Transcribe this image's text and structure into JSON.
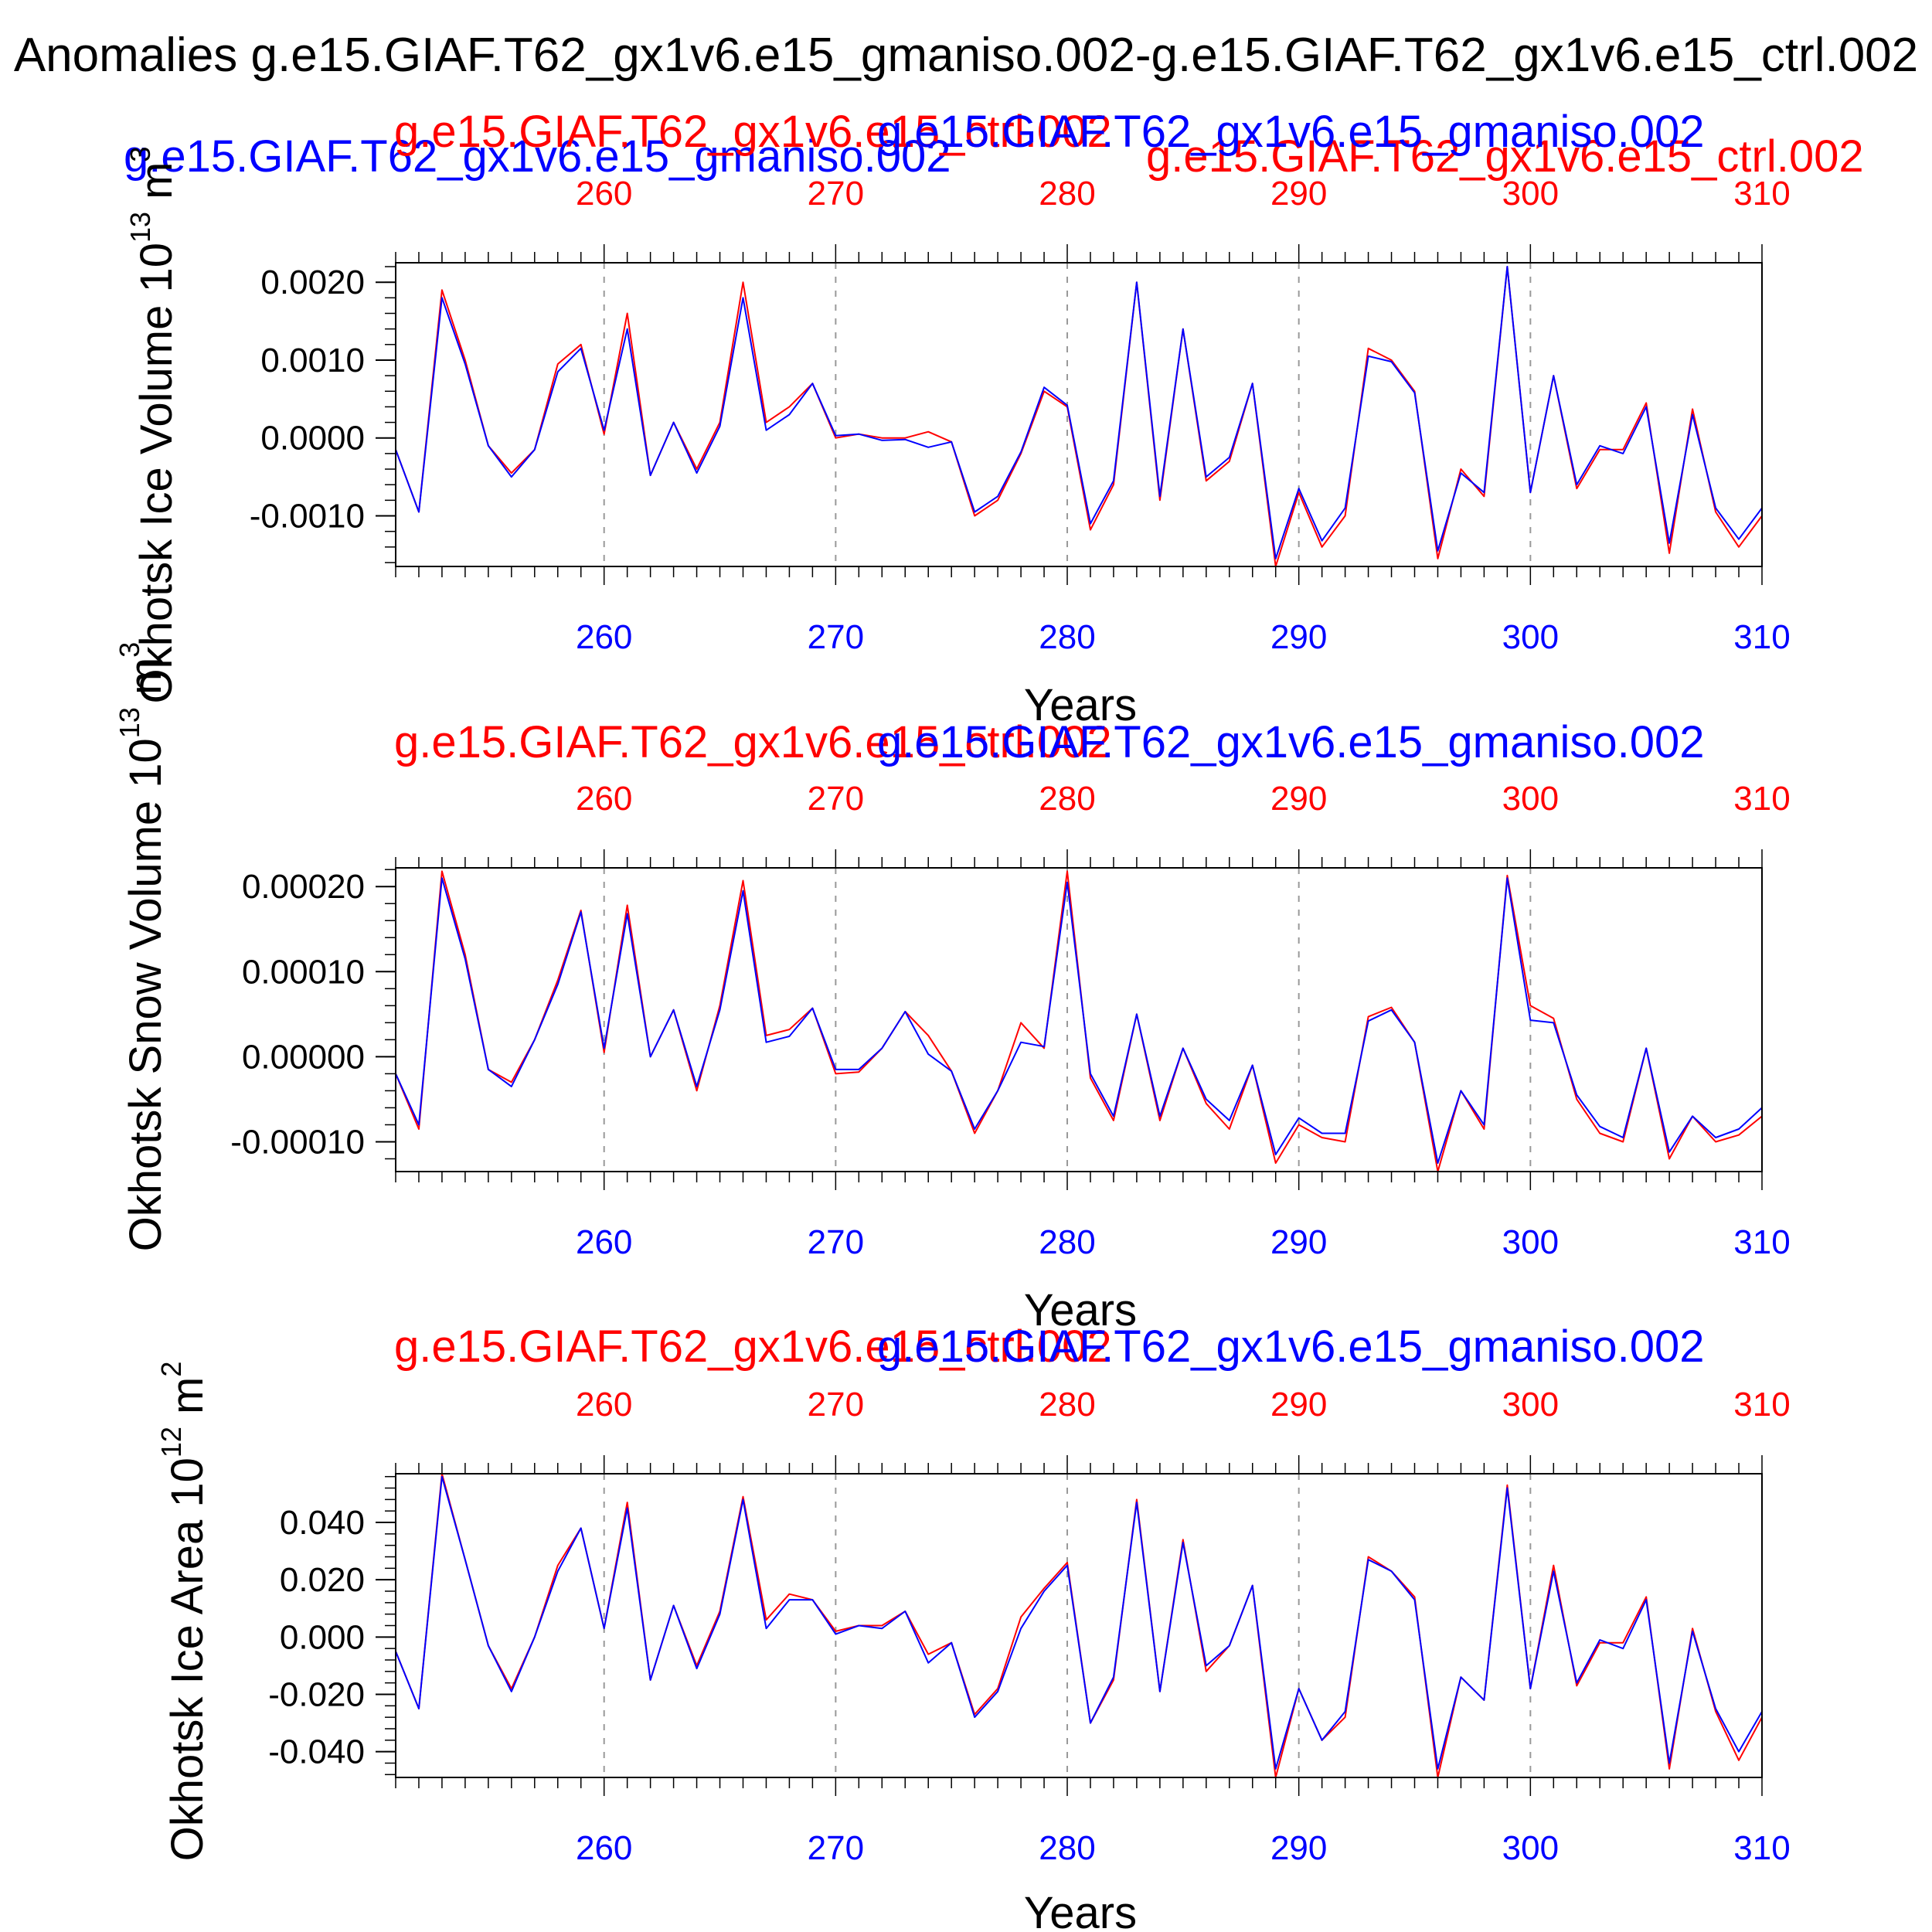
{
  "figure": {
    "title": "Anomalies g.e15.GIAF.T62_gx1v6.e15_gmaniso.002-g.e15.GIAF.T62_gx1v6.e15_ctrl.002"
  },
  "colors": {
    "ctrl": "#ff0000",
    "gmaniso": "#0000ff",
    "axis": "#000000",
    "grid": "#999999"
  },
  "chart_data": [
    {
      "type": "line",
      "title": "Okhotsk Ice Volume",
      "ylabel": "Okhotsk Ice Volume 10^13 m^3",
      "ylabel_parts": {
        "text": "Okhotsk Ice Volume 10",
        "exp1": "13",
        "unit": " m",
        "exp2": "3"
      },
      "xlabel": "Years",
      "legend": {
        "red": "g.e15.GIAF.T62_gx1v6.e15_ctrl.002",
        "blue": "g.e15.GIAF.T62_gx1v6.e15_gmaniso.002",
        "extra_blue": "g.e15.GIAF.T62_gx1v6.e15_gmaniso.002",
        "extra_red": "g.e15.GIAF.T62_gx1v6.e15_ctrl.002"
      },
      "xlim": [
        251,
        310
      ],
      "ylim": [
        -0.00165,
        0.00225
      ],
      "x_ticks": [
        260,
        270,
        280,
        290,
        300,
        310
      ],
      "x_tick_labels": [
        "260",
        "270",
        "280",
        "290",
        "300",
        "310"
      ],
      "y_ticks": [
        -0.001,
        0.0,
        0.001,
        0.002
      ],
      "y_tick_labels": [
        "-0.0010",
        "0.0000",
        "0.0010",
        "0.0020"
      ],
      "x_start": 251,
      "series": [
        {
          "name": "g.e15.GIAF.T62_gx1v6.e15_ctrl.002",
          "color": "#ff0000",
          "values": [
            -0.00015,
            -0.00095,
            0.0019,
            0.001,
            -0.0001,
            -0.00045,
            -0.00015,
            0.00095,
            0.0012,
            5e-05,
            0.0016,
            -0.00048,
            0.0002,
            -0.0004,
            0.0002,
            0.002,
            0.0002,
            0.0004,
            0.0007,
            0.0,
            5e-05,
            0.0,
            0.0,
            8e-05,
            -5e-05,
            -0.001,
            -0.0008,
            -0.0002,
            0.0006,
            0.0004,
            -0.00118,
            -0.0006,
            0.002,
            -0.0008,
            0.0014,
            -0.00055,
            -0.0003,
            0.0007,
            -0.00165,
            -0.0007,
            -0.0014,
            -0.001,
            0.00115,
            0.001,
            0.0006,
            -0.00155,
            -0.0004,
            -0.00075,
            0.0022,
            -0.0007,
            0.0008,
            -0.00065,
            -0.00015,
            -0.00015,
            0.00045,
            -0.00148,
            0.00037,
            -0.00095,
            -0.0014,
            -0.001
          ]
        },
        {
          "name": "g.e15.GIAF.T62_gx1v6.e15_gmaniso.002",
          "color": "#0000ff",
          "values": [
            -0.00015,
            -0.00095,
            0.0018,
            0.00095,
            -0.0001,
            -0.0005,
            -0.00015,
            0.00085,
            0.00115,
            0.0001,
            0.0014,
            -0.00048,
            0.0002,
            -0.00045,
            0.00015,
            0.0018,
            0.0001,
            0.0003,
            0.0007,
            3e-05,
            5e-05,
            -3e-05,
            -2e-05,
            -0.00012,
            -5e-05,
            -0.00095,
            -0.00075,
            -0.00018,
            0.00065,
            0.00042,
            -0.0011,
            -0.00055,
            0.002,
            -0.00075,
            0.0014,
            -0.0005,
            -0.00025,
            0.0007,
            -0.00155,
            -0.00065,
            -0.00132,
            -0.0009,
            0.00105,
            0.00098,
            0.00058,
            -0.00145,
            -0.00045,
            -0.0007,
            0.0022,
            -0.0007,
            0.0008,
            -0.0006,
            -0.0001,
            -0.0002,
            0.0004,
            -0.00135,
            0.0003,
            -0.0009,
            -0.0013,
            -0.0009
          ]
        }
      ]
    },
    {
      "type": "line",
      "title": "Okhotsk Snow Volume",
      "ylabel": "Okhotsk Snow Volume 10^13 m^3",
      "ylabel_parts": {
        "text": "Okhotsk Snow Volume 10",
        "exp1": "13",
        "unit": " m",
        "exp2": "3"
      },
      "xlabel": "Years",
      "legend": {
        "red": "g.e15.GIAF.T62_gx1v6.e15_ctrl.002",
        "blue": "g.e15.GIAF.T62_gx1v6.e15_gmaniso.002"
      },
      "xlim": [
        251,
        310
      ],
      "ylim": [
        -0.000135,
        0.000222
      ],
      "x_ticks": [
        260,
        270,
        280,
        290,
        300,
        310
      ],
      "x_tick_labels": [
        "260",
        "270",
        "280",
        "290",
        "300",
        "310"
      ],
      "y_ticks": [
        -0.0001,
        0.0,
        0.0001,
        0.0002
      ],
      "y_tick_labels": [
        "-0.00010",
        "0.00000",
        "0.00010",
        "0.00020"
      ],
      "x_start": 251,
      "series": [
        {
          "name": "g.e15.GIAF.T62_gx1v6.e15_ctrl.002",
          "color": "#ff0000",
          "values": [
            -2e-05,
            -8.5e-05,
            0.000218,
            0.00012,
            -1.5e-05,
            -3e-05,
            2e-05,
            9e-05,
            0.000172,
            5e-06,
            0.000178,
            0.0,
            5.5e-05,
            -4e-05,
            6e-05,
            0.000207,
            2.5e-05,
            3.2e-05,
            5.7e-05,
            -2e-05,
            -1.8e-05,
            1e-05,
            5.3e-05,
            2.5e-05,
            -1.7e-05,
            -9e-05,
            -4e-05,
            4e-05,
            1e-05,
            0.000218,
            -2.5e-05,
            -7.5e-05,
            5e-05,
            -7.5e-05,
            1e-05,
            -5.5e-05,
            -8.5e-05,
            -1e-05,
            -0.000125,
            -8e-05,
            -9.5e-05,
            -0.0001,
            4.7e-05,
            5.8e-05,
            1.7e-05,
            -0.000135,
            -4e-05,
            -8.5e-05,
            0.000213,
            6e-05,
            4.5e-05,
            -5e-05,
            -9e-05,
            -0.0001,
            1e-05,
            -0.00012,
            -7e-05,
            -0.0001,
            -9.2e-05,
            -7e-05
          ]
        },
        {
          "name": "g.e15.GIAF.T62_gx1v6.e15_gmaniso.002",
          "color": "#0000ff",
          "values": [
            -2e-05,
            -8e-05,
            0.00021,
            0.000115,
            -1.5e-05,
            -3.5e-05,
            2e-05,
            8.5e-05,
            0.00017,
            1e-05,
            0.000168,
            0.0,
            5.5e-05,
            -3.5e-05,
            5.5e-05,
            0.000195,
            1.7e-05,
            2.4e-05,
            5.7e-05,
            -1.5e-05,
            -1.5e-05,
            1e-05,
            5.3e-05,
            3e-06,
            -1.7e-05,
            -8.5e-05,
            -4e-05,
            1.7e-05,
            1.2e-05,
            0.000205,
            -2e-05,
            -7e-05,
            5e-05,
            -7e-05,
            1e-05,
            -5e-05,
            -7.5e-05,
            -1e-05,
            -0.000115,
            -7.2e-05,
            -9e-05,
            -9e-05,
            4.2e-05,
            5.5e-05,
            1.7e-05,
            -0.000125,
            -4e-05,
            -8e-05,
            0.00021,
            4.3e-05,
            4e-05,
            -4.5e-05,
            -8.2e-05,
            -9.5e-05,
            1e-05,
            -0.000112,
            -7e-05,
            -9.5e-05,
            -8.5e-05,
            -6e-05
          ]
        }
      ]
    },
    {
      "type": "line",
      "title": "Okhotsk Ice Area",
      "ylabel": "Okhotsk Ice Area 10^12 m^2",
      "ylabel_parts": {
        "text": "Okhotsk Ice Area 10",
        "exp1": "12",
        "unit": " m",
        "exp2": "2"
      },
      "xlabel": "Years",
      "legend": {
        "red": "g.e15.GIAF.T62_gx1v6.e15_ctrl.002",
        "blue": "g.e15.GIAF.T62_gx1v6.e15_gmaniso.002"
      },
      "xlim": [
        251,
        310
      ],
      "ylim": [
        -0.049,
        0.057
      ],
      "x_ticks": [
        260,
        270,
        280,
        290,
        300,
        310
      ],
      "x_tick_labels": [
        "260",
        "270",
        "280",
        "290",
        "300",
        "310"
      ],
      "y_ticks": [
        -0.04,
        -0.02,
        0.0,
        0.02,
        0.04
      ],
      "y_tick_labels": [
        "-0.040",
        "-0.020",
        "0.000",
        "0.020",
        "0.040"
      ],
      "x_start": 251,
      "series": [
        {
          "name": "g.e15.GIAF.T62_gx1v6.e15_ctrl.002",
          "color": "#ff0000",
          "values": [
            -0.005,
            -0.025,
            0.057,
            0.027,
            -0.003,
            -0.018,
            0.0,
            0.025,
            0.038,
            0.003,
            0.047,
            -0.015,
            0.011,
            -0.01,
            0.009,
            0.049,
            0.006,
            0.015,
            0.013,
            0.002,
            0.004,
            0.004,
            0.009,
            -0.006,
            -0.002,
            -0.027,
            -0.018,
            0.007,
            0.017,
            0.026,
            -0.03,
            -0.015,
            0.048,
            -0.019,
            0.034,
            -0.012,
            -0.003,
            0.018,
            -0.049,
            -0.018,
            -0.036,
            -0.028,
            0.028,
            0.023,
            0.014,
            -0.049,
            -0.014,
            -0.022,
            0.053,
            -0.018,
            0.025,
            -0.017,
            -0.002,
            -0.002,
            0.014,
            -0.046,
            0.003,
            -0.026,
            -0.043,
            -0.028
          ]
        },
        {
          "name": "g.e15.GIAF.T62_gx1v6.e15_gmaniso.002",
          "color": "#0000ff",
          "values": [
            -0.005,
            -0.025,
            0.056,
            0.027,
            -0.003,
            -0.019,
            0.0,
            0.023,
            0.038,
            0.003,
            0.045,
            -0.015,
            0.011,
            -0.011,
            0.008,
            0.048,
            0.003,
            0.013,
            0.013,
            0.001,
            0.004,
            0.003,
            0.009,
            -0.009,
            -0.002,
            -0.028,
            -0.019,
            0.003,
            0.016,
            0.025,
            -0.03,
            -0.014,
            0.047,
            -0.019,
            0.033,
            -0.01,
            -0.003,
            0.018,
            -0.046,
            -0.018,
            -0.036,
            -0.026,
            0.027,
            0.023,
            0.013,
            -0.046,
            -0.014,
            -0.022,
            0.052,
            -0.018,
            0.023,
            -0.016,
            -0.001,
            -0.004,
            0.013,
            -0.044,
            0.002,
            -0.025,
            -0.04,
            -0.026
          ]
        }
      ]
    }
  ]
}
